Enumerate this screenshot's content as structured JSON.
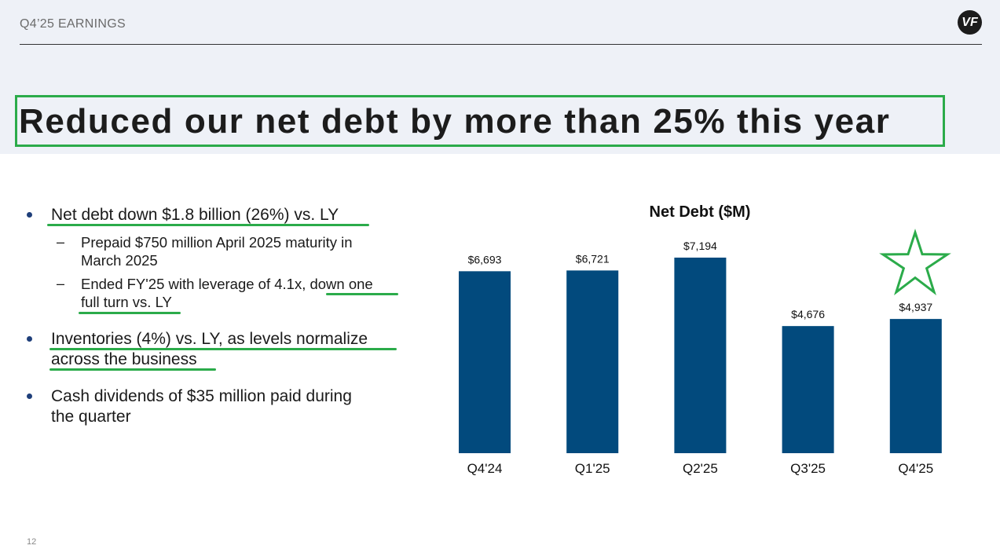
{
  "header": {
    "label": "Q4’25 EARNINGS",
    "logo_text": "VF"
  },
  "title": "Reduced our net debt by more than 25% this year",
  "bullets": {
    "b1": "Net debt down $1.8 billion (26%) vs. LY",
    "b1_sub1_line1": "Prepaid $750 million April 2025 maturity in",
    "b1_sub1_line2": "March 2025",
    "b1_sub2_line1": "Ended FY'25 with leverage of 4.1x, down one",
    "b1_sub2_line2": "full turn vs. LY",
    "b2_line1": "Inventories (4%) vs. LY, as levels normalize",
    "b2_line2": "across the business",
    "b3_line1": "Cash dividends of $35 million paid during",
    "b3_line2": "the quarter",
    "dash": "–"
  },
  "page_number": "12",
  "colors": {
    "bar": "#024a7d",
    "highlight": "#2bab4a",
    "bullet": "#1f3f7a"
  },
  "chart_data": {
    "type": "bar",
    "title": "Net Debt ($M)",
    "categories": [
      "Q4'24",
      "Q1'25",
      "Q2'25",
      "Q3'25",
      "Q4'25"
    ],
    "values": [
      6693,
      6721,
      7194,
      4676,
      4937
    ],
    "value_labels": [
      "$6,693",
      "$6,721",
      "$7,194",
      "$4,676",
      "$4,937"
    ],
    "ylim": [
      0,
      7194
    ],
    "grid": false,
    "annotations": [
      {
        "type": "star-icon",
        "category": "Q4'25"
      }
    ]
  }
}
